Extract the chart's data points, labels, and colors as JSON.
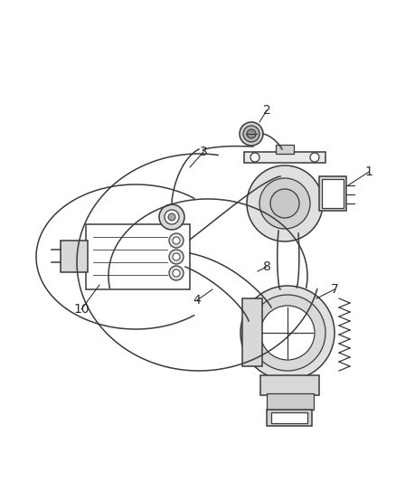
{
  "background_color": "#ffffff",
  "line_color": "#3a3a3a",
  "label_color": "#2a2a2a",
  "figsize": [
    4.39,
    5.33
  ],
  "dpi": 100,
  "xlim": [
    0,
    439
  ],
  "ylim": [
    0,
    533
  ]
}
